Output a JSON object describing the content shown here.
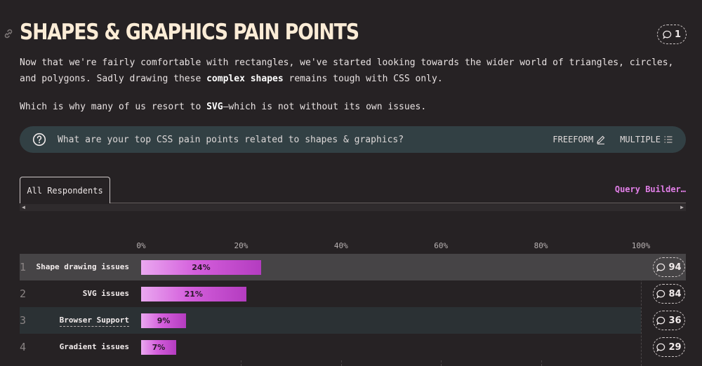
{
  "section": {
    "title": "SHAPES & GRAPHICS PAIN POINTS",
    "comment_count": "1",
    "intro_p1_before": "Now that we're fairly comfortable with rectangles, we've started looking towards the wider world of triangles, circles, and polygons. Sadly drawing these ",
    "intro_p1_bold": "complex shapes",
    "intro_p1_after": " remains tough with CSS only.",
    "intro_p2_before": "Which is why many of us resort to ",
    "intro_p2_bold": "SVG",
    "intro_p2_after": "—which is not without its own issues."
  },
  "question": {
    "text": "What are your top CSS pain points related to shapes & graphics?",
    "freeform_label": "FREEFORM",
    "multiple_label": "MULTIPLE"
  },
  "tabs": {
    "active_label": "All Respondents",
    "query_builder_label": "Query Builder…"
  },
  "chart_data": {
    "type": "bar",
    "orientation": "horizontal",
    "axis_ticks": [
      "0%",
      "20%",
      "40%",
      "60%",
      "80%",
      "100%"
    ],
    "xlim": [
      0,
      100
    ],
    "rows": [
      {
        "rank": "1",
        "label": "Shape drawing issues",
        "value": 24,
        "value_label": "24%",
        "comments": "94"
      },
      {
        "rank": "2",
        "label": "SVG issues",
        "value": 21,
        "value_label": "21%",
        "comments": "84"
      },
      {
        "rank": "3",
        "label": "Browser Support",
        "value": 9,
        "value_label": "9%",
        "comments": "36"
      },
      {
        "rank": "4",
        "label": "Gradient issues",
        "value": 7,
        "value_label": "7%",
        "comments": "29"
      }
    ]
  },
  "colors": {
    "background": "#262224",
    "bar_gradient_start": "#eaa8f0",
    "bar_gradient_end": "#b43cc0",
    "accent": "#e27fe8",
    "question_bar": "#324044"
  }
}
